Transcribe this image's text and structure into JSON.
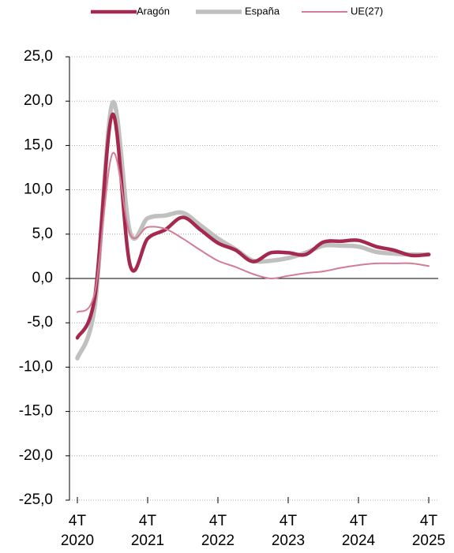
{
  "chart_data": {
    "type": "line",
    "categories": [
      "4T 2020",
      null,
      null,
      null,
      "4T 2021",
      null,
      null,
      null,
      "4T 2022",
      null,
      null,
      null,
      "4T 2023",
      null,
      null,
      null,
      "4T 2024",
      null,
      null,
      null,
      "4T 2025"
    ],
    "series": [
      {
        "name": "Aragón",
        "color": "#a5294f",
        "values": [
          -6.7,
          -2.0,
          18.5,
          1.5,
          4.5,
          5.5,
          6.9,
          5.5,
          4.0,
          3.2,
          1.9,
          2.9,
          2.9,
          2.7,
          4.1,
          4.2,
          4.3,
          3.6,
          3.2,
          2.6,
          2.7
        ]
      },
      {
        "name": "España",
        "color": "#c0c0c0",
        "values": [
          -9.0,
          -3.0,
          19.8,
          5.2,
          6.8,
          7.1,
          7.4,
          6.0,
          4.5,
          3.3,
          2.0,
          2.0,
          2.3,
          2.9,
          3.7,
          3.7,
          3.6,
          3.0,
          2.8,
          2.7,
          2.7
        ]
      },
      {
        "name": "UE(27)",
        "color": "#d27c95",
        "values": [
          -3.8,
          -1.5,
          14.1,
          5.0,
          5.8,
          5.6,
          4.5,
          3.2,
          2.0,
          1.3,
          0.5,
          0.0,
          0.3,
          0.6,
          0.8,
          1.2,
          1.5,
          1.7,
          1.7,
          1.7,
          1.4
        ]
      }
    ],
    "ylim": [
      -25,
      25
    ],
    "yticks": [
      {
        "value": -25,
        "label": "-25,0"
      },
      {
        "value": -20,
        "label": "-20,0"
      },
      {
        "value": -15,
        "label": "-15,0"
      },
      {
        "value": -10,
        "label": "-10,0"
      },
      {
        "value": -5,
        "label": "-5,0"
      },
      {
        "value": 0,
        "label": "0,0"
      },
      {
        "value": 5,
        "label": "5,0"
      },
      {
        "value": 10,
        "label": "10,0"
      },
      {
        "value": 15,
        "label": "15,0"
      },
      {
        "value": 20,
        "label": "20,0"
      },
      {
        "value": 25,
        "label": "25,0"
      }
    ],
    "grid": true,
    "legend": "top"
  }
}
